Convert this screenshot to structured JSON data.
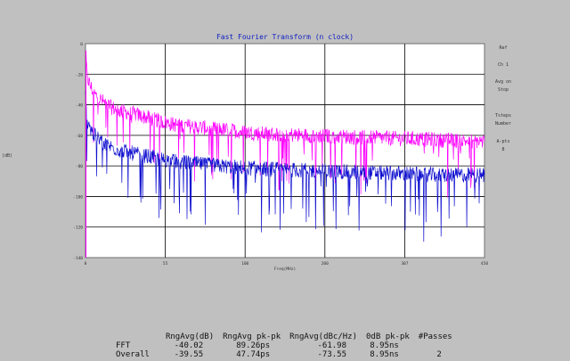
{
  "chart_data": {
    "type": "line",
    "title": "Fast Fourier Transform (n clock)",
    "xlabel": "Freq(MHz)",
    "ylabel": "(dB)",
    "xlim": [
      0,
      450
    ],
    "ylim": [
      -140,
      0
    ],
    "x_ticks": [
      "0",
      "55",
      "100",
      "200",
      "307",
      "450"
    ],
    "y_ticks": [
      "0",
      "-20",
      "-40",
      "-60",
      "-80",
      "-100",
      "-120",
      "-140"
    ],
    "grid": true,
    "series": [
      {
        "color": "#ff00ff",
        "x": [
          0,
          2,
          5,
          10,
          20,
          30,
          40,
          55,
          80,
          100,
          150,
          200,
          250,
          300,
          350,
          400,
          450
        ],
        "y": [
          -5,
          -22,
          -27,
          -33,
          -38,
          -42,
          -44,
          -46,
          -50,
          -53,
          -56,
          -59,
          -60,
          -61,
          -62,
          -63,
          -64
        ]
      },
      {
        "color": "#1010d0",
        "x": [
          0,
          2,
          5,
          10,
          20,
          30,
          40,
          55,
          80,
          100,
          150,
          200,
          250,
          300,
          350,
          400,
          450
        ],
        "y": [
          -35,
          -50,
          -55,
          -60,
          -65,
          -68,
          -70,
          -72,
          -75,
          -77,
          -80,
          -82,
          -83,
          -84,
          -85,
          -86,
          -86
        ]
      }
    ]
  },
  "right_panel": {
    "items": [
      "Ref",
      "Ch 1",
      "Avg on",
      "Stop",
      "Tsteps",
      "Number",
      "A-pts",
      "8"
    ]
  },
  "stats": {
    "headers": [
      "",
      "RngAvg(dB)",
      "RngAvg pk-pk",
      "RngAvg(dBc/Hz)",
      "0dB pk-pk",
      "#Passes"
    ],
    "rows": [
      {
        "name": "FFT",
        "values": [
          "-40.02",
          "89.26ps",
          "-61.98",
          "8.95ns",
          ""
        ]
      },
      {
        "name": "Overall",
        "values": [
          "-39.55",
          "47.74ps",
          "-73.55",
          "8.95ns",
          "2"
        ]
      }
    ]
  }
}
